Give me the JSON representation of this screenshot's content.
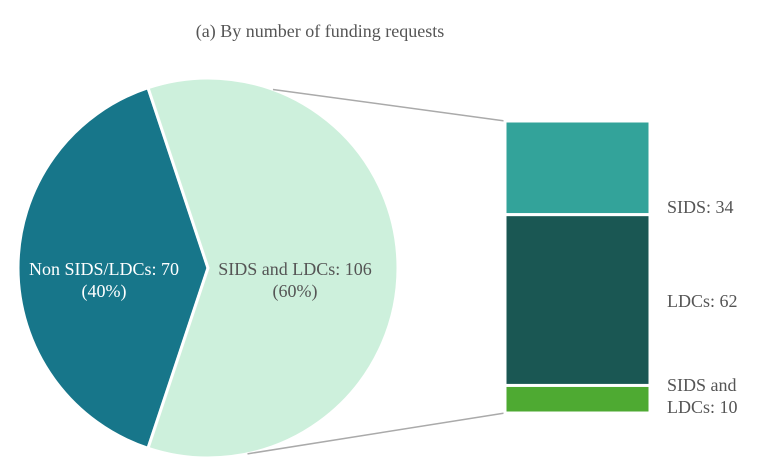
{
  "chart_data": {
    "type": "pie",
    "title": "(a) By number of funding requests",
    "values": [
      70,
      106
    ],
    "value_labels": [
      "Non SIDS/LDCs: 70 (40%)",
      "SIDS and LDCs: 106 (60%)"
    ],
    "colors": [
      "#17768a",
      "#cdf0dc"
    ],
    "breakdown": {
      "type": "stacked-bar",
      "values": [
        34,
        62,
        10
      ],
      "value_labels": [
        "SIDS: 34",
        "LDCs: 62",
        "SIDS and LDCs: 10"
      ],
      "colors": [
        "#33a39a",
        "#1a5753",
        "#4eaa32"
      ]
    }
  }
}
